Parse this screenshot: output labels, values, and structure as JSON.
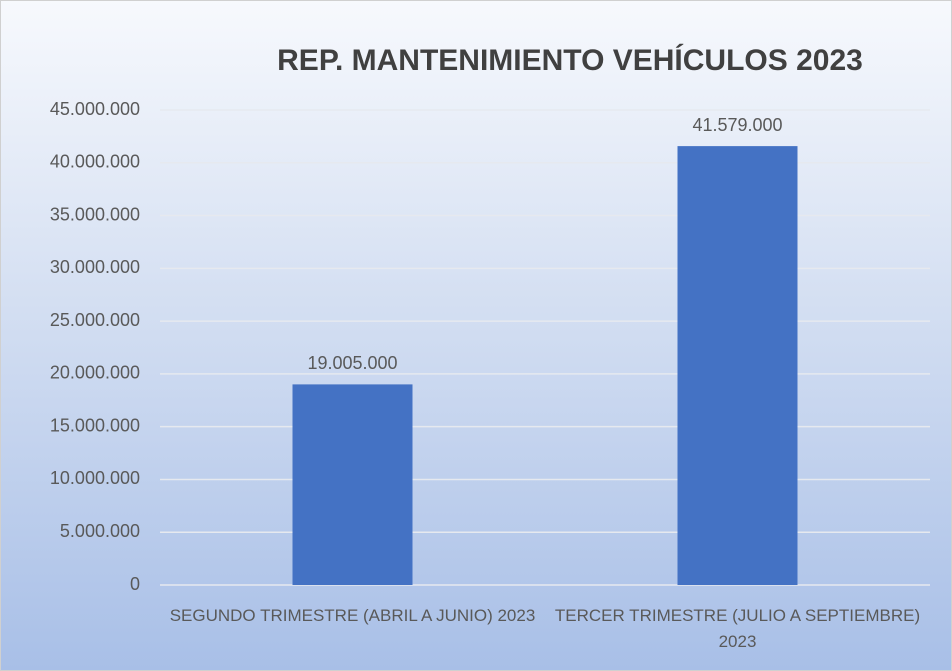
{
  "chart_data": {
    "type": "bar",
    "title": "REP. MANTENIMIENTO VEHÍCULOS 2023",
    "categories": [
      "SEGUNDO TRIMESTRE (ABRIL A JUNIO) 2023",
      "TERCER TRIMESTRE (JULIO A SEPTIEMBRE) 2023"
    ],
    "values": [
      19005000,
      41579000
    ],
    "value_labels": [
      "19.005.000",
      "41.579.000"
    ],
    "color": "#4472c4",
    "ylim": [
      0,
      45000000
    ],
    "yticks": [
      0,
      {
        "value": 5000000,
        "label": "5.000.000"
      },
      {
        "value": 10000000,
        "label": "10.000.000"
      },
      {
        "value": 15000000,
        "label": "15.000.000"
      },
      {
        "value": 20000000,
        "label": "20.000.000"
      },
      {
        "value": 25000000,
        "label": "25.000.000"
      },
      {
        "value": 30000000,
        "label": "30.000.000"
      },
      {
        "value": 35000000,
        "label": "35.000.000"
      },
      {
        "value": 40000000,
        "label": "40.000.000"
      },
      {
        "value": 45000000,
        "label": "45.000.000"
      }
    ],
    "grid": true
  }
}
